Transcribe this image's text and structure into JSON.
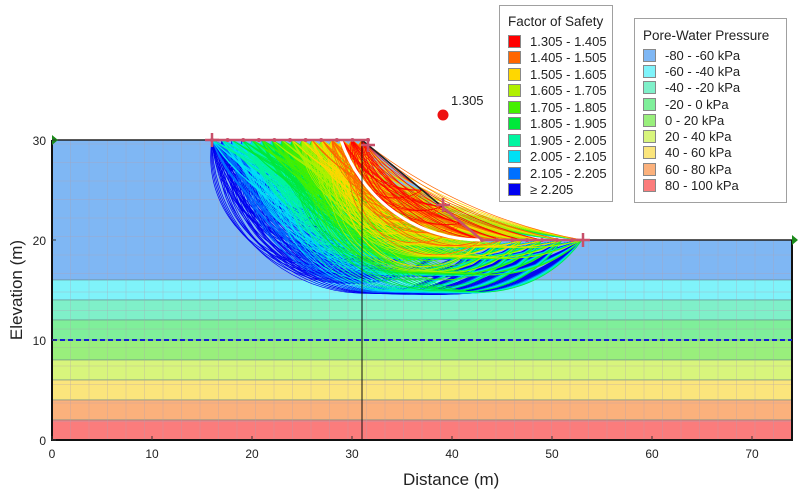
{
  "chart_data": {
    "type": "slope-stability",
    "xlabel": "Distance (m)",
    "ylabel": "Elevation (m)",
    "xlim": [
      0,
      74
    ],
    "ylim": [
      0,
      30
    ],
    "xticks": [
      "0",
      "10",
      "20",
      "30",
      "40",
      "50",
      "60",
      "70"
    ],
    "xtick_values": [
      0,
      10,
      20,
      30,
      40,
      50,
      60,
      70
    ],
    "yticks": [
      "0",
      "10",
      "20",
      "30"
    ],
    "ytick_values": [
      0,
      10,
      20,
      30
    ],
    "geometry": {
      "ground_surface": [
        [
          0,
          30
        ],
        [
          31,
          30
        ],
        [
          43,
          20
        ],
        [
          74,
          20
        ]
      ],
      "bottom": 0,
      "internal_boundary_x": 31,
      "water_table_elevation": 10
    },
    "critical_slip": {
      "fos": "1.305",
      "entry_x": 28.9,
      "exit_x": 43,
      "depth": 2.8,
      "center": [
        39.1,
        32.5
      ]
    },
    "entry_range": [
      16,
      31.6
    ],
    "exit_range": [
      39.1,
      53.1
    ],
    "pwp_bands": [
      {
        "from": 16,
        "to": 30,
        "color": "#7fb7f4"
      },
      {
        "from": 14,
        "to": 16,
        "color": "#7ff3fa"
      },
      {
        "from": 12,
        "to": 14,
        "color": "#7ff0c9"
      },
      {
        "from": 10,
        "to": 12,
        "color": "#7fef9a"
      },
      {
        "from": 8,
        "to": 10,
        "color": "#99ef7c"
      },
      {
        "from": 6,
        "to": 8,
        "color": "#d8f57c"
      },
      {
        "from": 4,
        "to": 6,
        "color": "#fbe57c"
      },
      {
        "from": 2,
        "to": 4,
        "color": "#fbb17c"
      },
      {
        "from": 0,
        "to": 2,
        "color": "#fb7c7c"
      }
    ],
    "fos_legend": {
      "title": "Factor of Safety",
      "items": [
        {
          "label": "1.305 - 1.405",
          "min": 1.305,
          "color": "#ff0000"
        },
        {
          "label": "1.405 - 1.505",
          "min": 1.405,
          "color": "#ff6600"
        },
        {
          "label": "1.505 - 1.605",
          "min": 1.505,
          "color": "#ffd700"
        },
        {
          "label": "1.605 - 1.705",
          "min": 1.605,
          "color": "#b0f000"
        },
        {
          "label": "1.705 - 1.805",
          "min": 1.705,
          "color": "#44f000"
        },
        {
          "label": "1.805 - 1.905",
          "min": 1.805,
          "color": "#00e83a"
        },
        {
          "label": "1.905 - 2.005",
          "min": 1.905,
          "color": "#00f5a0"
        },
        {
          "label": "2.005 - 2.105",
          "min": 2.005,
          "color": "#00e0f5"
        },
        {
          "label": "2.105 - 2.205",
          "min": 2.105,
          "color": "#0070ff"
        },
        {
          "label": "≥ 2.205",
          "min": 2.205,
          "color": "#0000f0"
        }
      ]
    },
    "pwp_legend": {
      "title": "Pore-Water Pressure",
      "items": [
        {
          "label": "-80 - -60 kPa",
          "color": "#7fb7f4"
        },
        {
          "label": "-60 - -40 kPa",
          "color": "#7ff3fa"
        },
        {
          "label": "-40 - -20 kPa",
          "color": "#7ff0c9"
        },
        {
          "label": "-20 - 0 kPa",
          "color": "#7fef9a"
        },
        {
          "label": "0 - 20 kPa",
          "color": "#99ef7c"
        },
        {
          "label": "20 - 40 kPa",
          "color": "#d8f57c"
        },
        {
          "label": "40 - 60 kPa",
          "color": "#fbe57c"
        },
        {
          "label": "60 - 80 kPa",
          "color": "#fbb17c"
        },
        {
          "label": "80 - 100 kPa",
          "color": "#fb7c7c"
        }
      ]
    }
  }
}
